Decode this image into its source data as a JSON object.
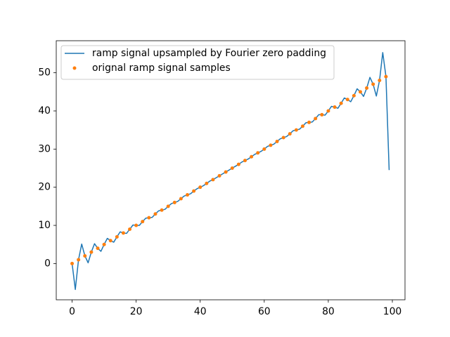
{
  "chart_data": {
    "type": "line",
    "xlim": [
      -4.95,
      103.95
    ],
    "ylim": [
      -9.5,
      58.4
    ],
    "xticks": [
      0,
      20,
      40,
      60,
      80,
      100
    ],
    "yticks": [
      0,
      10,
      20,
      30,
      40,
      50
    ],
    "legend": "upper left",
    "series": [
      {
        "name": "ramp signal upsampled by Fourier zero padding",
        "color": "#1f77b4",
        "type": "line",
        "x": [
          0,
          1,
          2,
          3,
          4,
          5,
          6,
          7,
          8,
          9,
          10,
          11,
          12,
          13,
          14,
          15,
          16,
          17,
          18,
          19,
          20,
          21,
          22,
          23,
          24,
          25,
          26,
          27,
          28,
          29,
          30,
          31,
          32,
          33,
          34,
          35,
          36,
          37,
          38,
          39,
          40,
          41,
          42,
          43,
          44,
          45,
          46,
          47,
          48,
          49,
          50,
          51,
          52,
          53,
          54,
          55,
          56,
          57,
          58,
          59,
          60,
          61,
          62,
          63,
          64,
          65,
          66,
          67,
          68,
          69,
          70,
          71,
          72,
          73,
          74,
          75,
          76,
          77,
          78,
          79,
          80,
          81,
          82,
          83,
          84,
          85,
          86,
          87,
          88,
          89,
          90,
          91,
          92,
          93,
          94,
          95,
          96,
          97,
          98,
          99
        ],
        "values": [
          0,
          -6.8,
          1,
          5.1,
          2,
          0.2,
          3,
          5.2,
          4,
          3.2,
          5,
          6.6,
          6,
          5.6,
          7,
          8.3,
          8,
          7.9,
          9,
          10.1,
          10,
          10.0,
          11,
          11.9,
          12,
          12.1,
          13,
          13.8,
          14,
          14.2,
          15,
          15.7,
          16,
          16.3,
          17,
          17.7,
          18,
          18.3,
          19,
          19.6,
          20,
          20.4,
          21,
          21.6,
          22,
          22.5,
          23,
          23.5,
          24,
          24.5,
          25,
          25.5,
          26,
          26.6,
          27,
          27.4,
          28,
          28.6,
          29,
          29.4,
          30,
          30.7,
          31,
          31.3,
          32,
          32.7,
          33,
          33.3,
          34,
          34.8,
          35,
          35.2,
          36,
          36.9,
          37,
          37.1,
          38,
          39.0,
          39,
          38.9,
          40,
          41.2,
          41,
          40.7,
          42,
          43.4,
          43,
          42.4,
          44,
          45.8,
          45,
          43.8,
          46,
          48.8,
          47,
          43.9,
          48,
          55.3,
          49,
          24.5
        ]
      },
      {
        "name": "orignal ramp signal samples",
        "color": "#ff7f0e",
        "type": "scatter",
        "x": [
          0,
          2,
          4,
          6,
          8,
          10,
          12,
          14,
          16,
          18,
          20,
          22,
          24,
          26,
          28,
          30,
          32,
          34,
          36,
          38,
          40,
          42,
          44,
          46,
          48,
          50,
          52,
          54,
          56,
          58,
          60,
          62,
          64,
          66,
          68,
          70,
          72,
          74,
          76,
          78,
          80,
          82,
          84,
          86,
          88,
          90,
          92,
          94,
          96,
          98
        ],
        "values": [
          0,
          1,
          2,
          3,
          4,
          5,
          6,
          7,
          8,
          9,
          10,
          11,
          12,
          13,
          14,
          15,
          16,
          17,
          18,
          19,
          20,
          21,
          22,
          23,
          24,
          25,
          26,
          27,
          28,
          29,
          30,
          31,
          32,
          33,
          34,
          35,
          36,
          37,
          38,
          39,
          40,
          41,
          42,
          43,
          44,
          45,
          46,
          47,
          48,
          49
        ]
      }
    ]
  }
}
